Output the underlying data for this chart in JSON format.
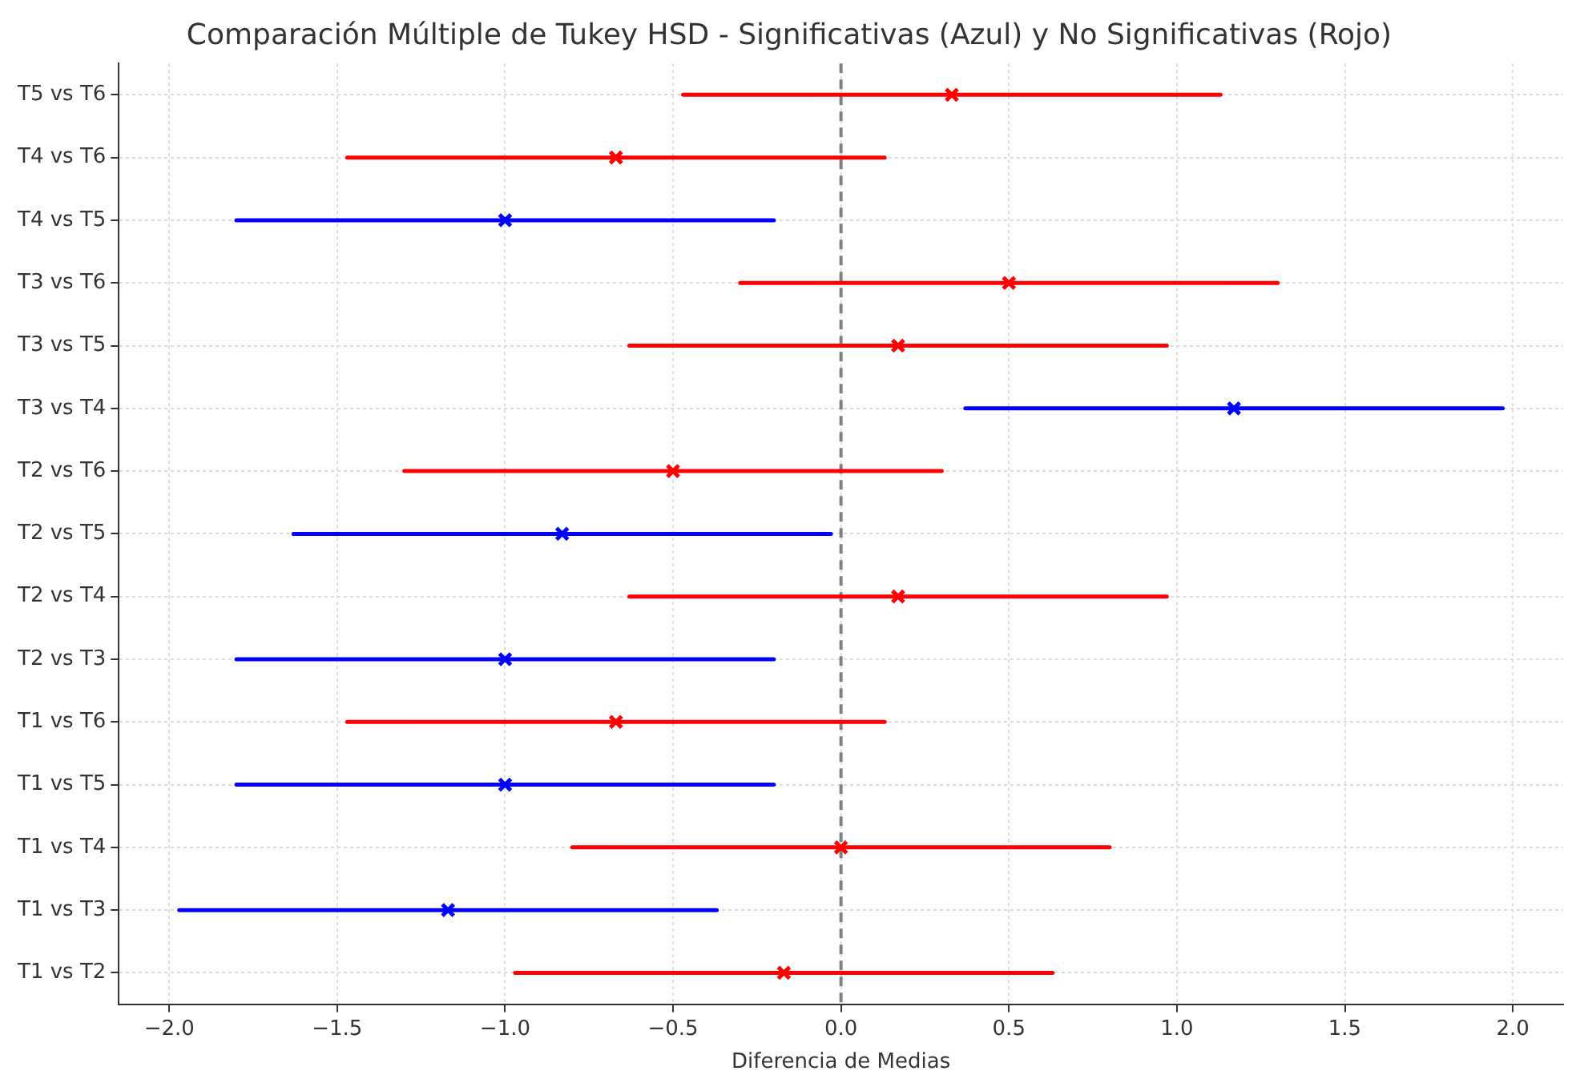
{
  "chart_data": {
    "type": "scatter",
    "orientation": "horizontal",
    "title": "Comparación Múltiple de Tukey HSD - Significativas (Azul) y No Significativas (Rojo)",
    "xlabel": "Diferencia de Medias",
    "categories": [
      "T5 vs T6",
      "T4 vs T6",
      "T4 vs T5",
      "T3 vs T6",
      "T3 vs T5",
      "T3 vs T4",
      "T2 vs T6",
      "T2 vs T5",
      "T2 vs T4",
      "T2 vs T3",
      "T1 vs T6",
      "T1 vs T5",
      "T1 vs T4",
      "T1 vs T3",
      "T1 vs T2"
    ],
    "values": [
      0.33,
      -0.67,
      -1.0,
      0.5,
      0.17,
      1.17,
      -0.5,
      -0.83,
      0.17,
      -1.0,
      -0.67,
      -1.0,
      0.0,
      -1.17,
      -0.17
    ],
    "errors": [
      0.8,
      0.8,
      0.8,
      0.8,
      0.8,
      0.8,
      0.8,
      0.8,
      0.8,
      0.8,
      0.8,
      0.8,
      0.8,
      0.8,
      0.8
    ],
    "colors": [
      "#ff0000",
      "#ff0000",
      "#0000ff",
      "#ff0000",
      "#ff0000",
      "#0000ff",
      "#ff0000",
      "#0000ff",
      "#ff0000",
      "#0000ff",
      "#ff0000",
      "#0000ff",
      "#ff0000",
      "#0000ff",
      "#ff0000"
    ],
    "xlim": [
      -2.15,
      2.15
    ],
    "xticks": [
      {
        "value": -2,
        "label": "−2.0"
      },
      {
        "value": -1.5,
        "label": "−1.5"
      },
      {
        "value": -1,
        "label": "−1.0"
      },
      {
        "value": -0.5,
        "label": "−0.5"
      },
      {
        "value": 0,
        "label": "0.0"
      },
      {
        "value": 0.5,
        "label": "0.5"
      },
      {
        "value": 1,
        "label": "1.0"
      },
      {
        "value": 1.5,
        "label": "1.5"
      },
      {
        "value": 2,
        "label": "2.0"
      }
    ],
    "ref_lines": [
      {
        "axis": "x",
        "value": 0,
        "color": "#808080",
        "line_style": "dashed"
      }
    ],
    "grid": true,
    "marker": "cross",
    "legend": false
  }
}
